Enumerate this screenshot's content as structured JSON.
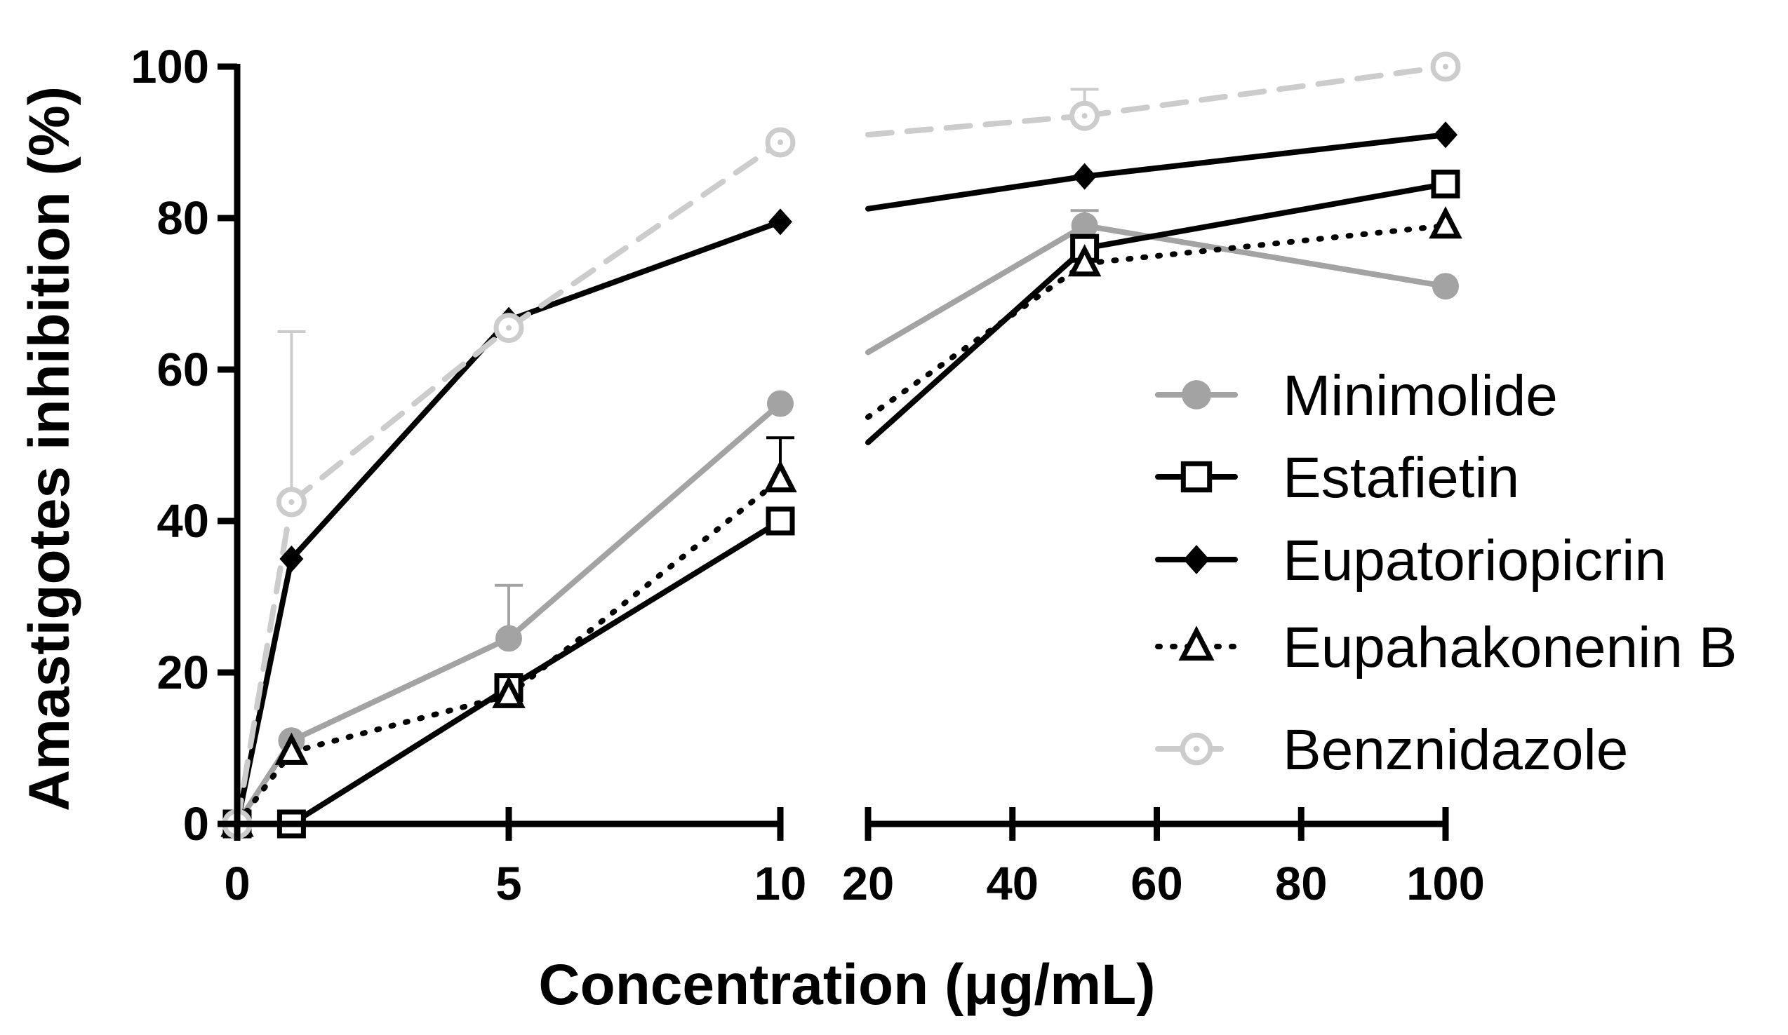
{
  "chart_data": {
    "type": "line",
    "title": "",
    "xlabel": "Concentration (μg/mL)",
    "ylabel": "Amastigotes inhibition (%)",
    "ylim": [
      0,
      100
    ],
    "yticks": [
      "0",
      "20",
      "40",
      "60",
      "80",
      "100"
    ],
    "x_axis_segments": [
      {
        "range": [
          0,
          10
        ],
        "ticks": [
          "0",
          "5",
          "10"
        ]
      },
      {
        "range": [
          20,
          100
        ],
        "ticks": [
          "20",
          "40",
          "60",
          "80",
          "100"
        ]
      }
    ],
    "axis_break": "between 10 and 20",
    "grid": false,
    "legend_position": "right",
    "series": [
      {
        "name": "Minimolide",
        "color": "#a3a3a3",
        "line": "solid",
        "marker": "circle-filled",
        "x": [
          0,
          1,
          5,
          10,
          50,
          100
        ],
        "y": [
          0,
          11,
          24.5,
          55.5,
          79,
          71
        ],
        "error_upper": [
          null,
          null,
          31.5,
          null,
          81,
          null
        ]
      },
      {
        "name": "Estafietin",
        "color": "#000000",
        "line": "solid",
        "marker": "square-open",
        "x": [
          0,
          1,
          5,
          10,
          50,
          100
        ],
        "y": [
          0,
          0,
          18,
          40,
          76,
          84.5
        ],
        "error_upper": [
          null,
          null,
          null,
          null,
          null,
          null
        ]
      },
      {
        "name": "Eupatoriopicrin",
        "color": "#000000",
        "line": "solid",
        "marker": "diamond-filled",
        "x": [
          0,
          1,
          5,
          10,
          50,
          100
        ],
        "y": [
          0,
          35,
          66.5,
          79.5,
          85.5,
          91
        ],
        "error_upper": [
          null,
          null,
          null,
          null,
          null,
          null
        ]
      },
      {
        "name": "Eupahakonenin B",
        "color": "#000000",
        "line": "dotted",
        "marker": "triangle-open",
        "x": [
          0,
          1,
          5,
          10,
          50,
          100
        ],
        "y": [
          0,
          9.5,
          17,
          45.5,
          74,
          79
        ],
        "error_upper": [
          null,
          null,
          null,
          51,
          null,
          null
        ]
      },
      {
        "name": "Benznidazole",
        "color": "#cccccc",
        "line": "dashed",
        "marker": "circle-dot-open",
        "x": [
          0,
          1,
          5,
          10,
          50,
          100
        ],
        "y": [
          0,
          42.5,
          65.5,
          90,
          93.5,
          100
        ],
        "error_upper": [
          null,
          65,
          null,
          null,
          97,
          null
        ]
      }
    ]
  }
}
